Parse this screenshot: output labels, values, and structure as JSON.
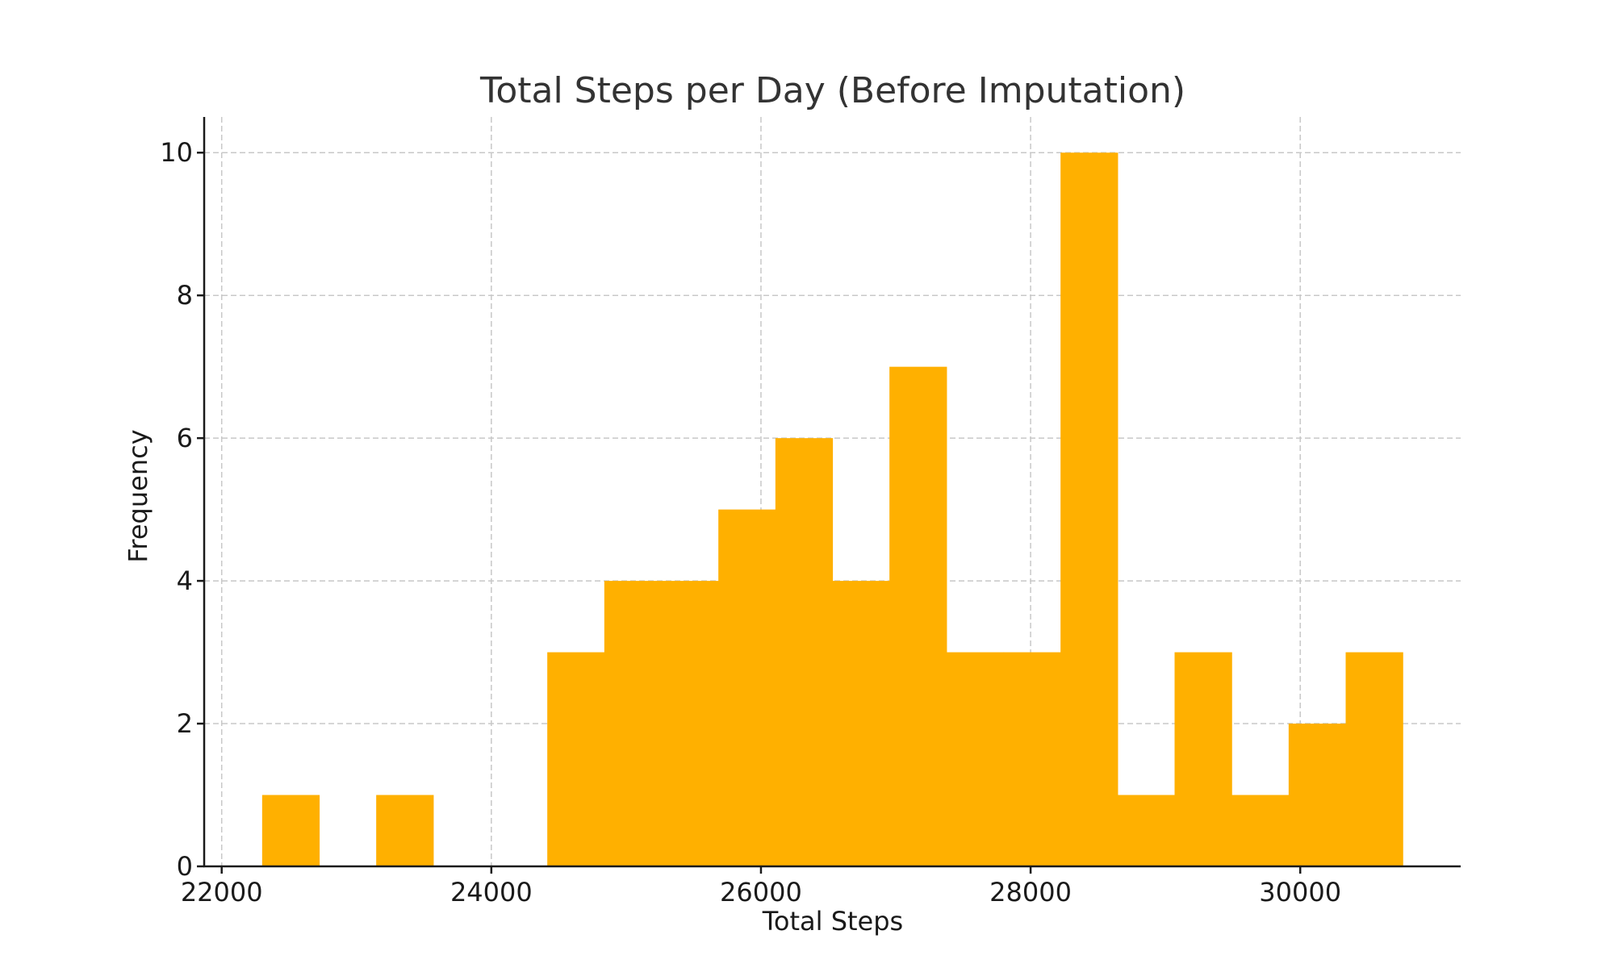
{
  "chart_data": {
    "type": "bar",
    "subtype": "histogram",
    "title": "Total Steps per Day (Before Imputation)",
    "xlabel": "Total Steps",
    "ylabel": "Frequency",
    "xlim": [
      21870,
      31190
    ],
    "ylim": [
      0,
      10.5
    ],
    "xticks": [
      22000,
      24000,
      26000,
      28000,
      30000
    ],
    "yticks": [
      0,
      2,
      4,
      6,
      8,
      10
    ],
    "grid": true,
    "legend": "none",
    "bar_color": "#FFB000",
    "bins": [
      {
        "x0": 22300,
        "x1": 22723,
        "count": 1
      },
      {
        "x0": 22723,
        "x1": 23146,
        "count": 0
      },
      {
        "x0": 23146,
        "x1": 23569,
        "count": 1
      },
      {
        "x0": 23569,
        "x1": 23992,
        "count": 0
      },
      {
        "x0": 23992,
        "x1": 24415,
        "count": 0
      },
      {
        "x0": 24415,
        "x1": 24838,
        "count": 3
      },
      {
        "x0": 24838,
        "x1": 25261,
        "count": 4
      },
      {
        "x0": 25261,
        "x1": 25684,
        "count": 4
      },
      {
        "x0": 25684,
        "x1": 26107,
        "count": 5
      },
      {
        "x0": 26107,
        "x1": 26530,
        "count": 6
      },
      {
        "x0": 26530,
        "x1": 26953,
        "count": 4
      },
      {
        "x0": 26953,
        "x1": 27376,
        "count": 7
      },
      {
        "x0": 27376,
        "x1": 27799,
        "count": 3
      },
      {
        "x0": 27799,
        "x1": 28222,
        "count": 3
      },
      {
        "x0": 28222,
        "x1": 28645,
        "count": 10
      },
      {
        "x0": 28645,
        "x1": 29068,
        "count": 1
      },
      {
        "x0": 29068,
        "x1": 29491,
        "count": 3
      },
      {
        "x0": 29491,
        "x1": 29914,
        "count": 1
      },
      {
        "x0": 29914,
        "x1": 30337,
        "count": 2
      },
      {
        "x0": 30337,
        "x1": 30760,
        "count": 3
      }
    ]
  }
}
